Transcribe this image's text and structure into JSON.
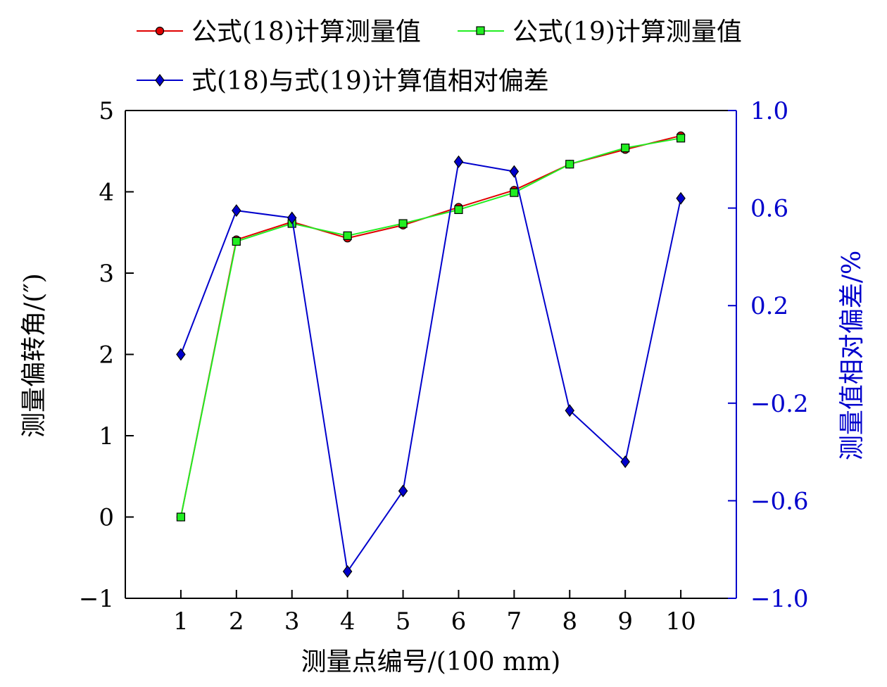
{
  "chart_data": {
    "type": "line",
    "title": "",
    "xlabel": "测量点编号/(100 mm)",
    "ylabel": "测量偏转角/(″)",
    "ylabel_right": "测量值相对偏差/%",
    "x": [
      1,
      2,
      3,
      4,
      5,
      6,
      7,
      8,
      9,
      10
    ],
    "xlim": [
      0,
      11
    ],
    "ylim": [
      -1,
      5
    ],
    "ylim_right": [
      -1.0,
      1.0
    ],
    "x_ticks": [
      "1",
      "2",
      "3",
      "4",
      "5",
      "6",
      "7",
      "8",
      "9",
      "10"
    ],
    "y_ticks": [
      "−1",
      "0",
      "1",
      "2",
      "3",
      "4",
      "5"
    ],
    "y_right_ticks": [
      "−1.0",
      "−0.6",
      "−0.2",
      "0.2",
      "0.6",
      "1.0"
    ],
    "grid": false,
    "legend_position": "top",
    "series": [
      {
        "name": "公式(18)计算测量值",
        "axis": "left",
        "marker": "circle",
        "color": "#e00000",
        "values": [
          0.0,
          3.41,
          3.63,
          3.43,
          3.59,
          3.81,
          4.02,
          4.34,
          4.52,
          4.69
        ]
      },
      {
        "name": "公式(19)计算测量值",
        "axis": "left",
        "marker": "square",
        "color": "#22ee22",
        "values": [
          0.0,
          3.39,
          3.61,
          3.46,
          3.61,
          3.78,
          3.99,
          4.34,
          4.54,
          4.66
        ]
      },
      {
        "name": "式(18)与式(19)计算值相对偏差",
        "axis": "right",
        "marker": "diamond",
        "color": "#0000cc",
        "values": [
          0.0,
          0.59,
          0.56,
          -0.89,
          -0.56,
          0.79,
          0.75,
          -0.23,
          -0.44,
          0.64
        ]
      }
    ]
  }
}
